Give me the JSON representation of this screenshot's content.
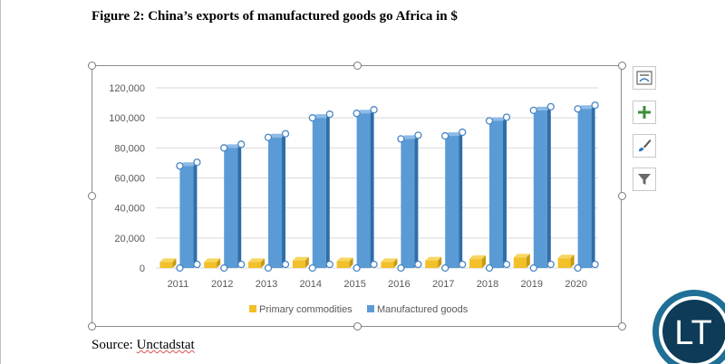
{
  "document": {
    "figure_title": "Figure 2: China’s exports of manufactured goods go Africa in $",
    "source_label": "Source: ",
    "source_name": "Unctadstat"
  },
  "chart_data": {
    "type": "bar",
    "categories": [
      "2011",
      "2012",
      "2013",
      "2014",
      "2015",
      "2016",
      "2017",
      "2018",
      "2019",
      "2020"
    ],
    "series": [
      {
        "name": "Primary commodities",
        "color": "#f2c029",
        "values": [
          4000,
          4000,
          4000,
          5000,
          4500,
          4000,
          5000,
          6000,
          7000,
          6500
        ]
      },
      {
        "name": "Manufactured goods",
        "color": "#5b9bd5",
        "values": [
          68000,
          80000,
          87000,
          100000,
          103000,
          86000,
          88000,
          98000,
          105000,
          106000
        ]
      }
    ],
    "yticks": [
      "0",
      "20,000",
      "40,000",
      "60,000",
      "80,000",
      "100,000",
      "120,000"
    ],
    "ylim": [
      0,
      120000
    ],
    "grid": true,
    "legend_position": "bottom",
    "selected_series": "Manufactured goods"
  },
  "side_buttons": [
    {
      "name": "chart-elements-layout-icon"
    },
    {
      "name": "add-chart-element-icon"
    },
    {
      "name": "chart-styles-brush-icon"
    },
    {
      "name": "chart-filters-icon"
    }
  ],
  "logo": {
    "text": "LT",
    "ring_color": "#1f6f96",
    "fill_color": "#0d3b58"
  }
}
